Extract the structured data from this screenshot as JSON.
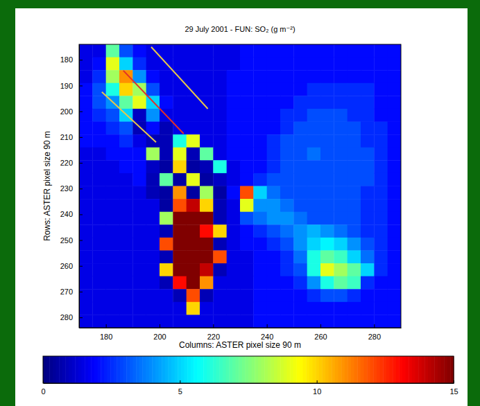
{
  "chart_data": {
    "type": "heatmap",
    "title": "29 July 2001 - FUN: SO₂ (g m⁻²)",
    "xlabel": "Columns: ASTER pixel size 90 m",
    "ylabel": "Rows: ASTER pixel size 90 m",
    "xlim": [
      170,
      290
    ],
    "ylim": [
      174,
      284
    ],
    "xticks": [
      180,
      200,
      220,
      240,
      260,
      280
    ],
    "yticks": [
      180,
      190,
      200,
      210,
      220,
      230,
      240,
      250,
      260,
      270,
      280
    ],
    "color": "jet",
    "cells": {
      "x_edges": [
        170,
        175,
        180,
        185,
        190,
        195,
        200,
        205,
        210,
        215,
        220,
        225,
        230,
        235,
        240,
        245,
        250,
        255,
        260,
        265,
        270,
        275,
        280,
        285,
        290
      ],
      "y_edges": [
        174,
        179,
        184,
        189,
        194,
        199,
        204,
        209,
        214,
        219,
        224,
        229,
        234,
        239,
        244,
        249,
        254,
        259,
        264,
        269,
        274,
        279,
        284
      ],
      "z": [
        [
          1.5,
          1.5,
          7,
          3,
          2,
          1.5,
          1.5,
          1.5,
          1.5,
          1.5,
          1.5,
          1.5,
          2,
          2,
          2,
          2,
          2,
          2,
          2,
          2,
          2,
          2,
          2,
          2
        ],
        [
          1.5,
          2,
          9,
          5,
          2.5,
          1.5,
          1.5,
          1.5,
          1.5,
          1.5,
          1.5,
          1.5,
          2,
          2,
          2,
          2,
          2,
          2,
          2,
          2,
          2,
          2,
          2,
          2
        ],
        [
          1.5,
          2.5,
          8,
          11,
          4,
          2,
          1.5,
          1.5,
          1.5,
          1.5,
          1.5,
          2,
          2,
          2,
          2,
          2,
          2,
          2,
          2,
          2,
          2,
          2,
          2,
          2
        ],
        [
          2,
          3,
          6,
          10,
          8,
          3,
          1.5,
          1.5,
          1.5,
          1.5,
          1.5,
          2,
          2,
          2,
          2,
          2,
          2,
          2.5,
          2.5,
          2.5,
          2.5,
          2.5,
          2,
          2
        ],
        [
          2,
          3,
          4,
          7,
          9,
          5,
          2,
          1.5,
          1.5,
          1.5,
          1.5,
          2,
          2,
          2,
          2,
          2,
          2.5,
          2.5,
          2.5,
          2.5,
          2.5,
          2.5,
          2,
          2
        ],
        [
          2,
          2.5,
          3,
          5,
          1,
          4,
          1.5,
          1.5,
          1.5,
          1.5,
          1.5,
          2,
          2,
          2,
          2,
          2.5,
          2.5,
          3,
          3,
          3,
          2.5,
          2.5,
          2,
          2
        ],
        [
          2,
          2,
          2.5,
          3,
          0.8,
          2,
          0.8,
          1.5,
          1.5,
          1.5,
          1.5,
          2,
          2,
          2,
          2,
          2.5,
          3,
          3,
          3,
          3,
          3,
          2.5,
          2.5,
          2
        ],
        [
          2,
          2,
          2,
          2.5,
          1.5,
          0.8,
          0.8,
          6,
          9,
          1.5,
          1.5,
          2,
          2,
          2,
          2.5,
          3,
          3,
          3,
          3,
          3,
          3,
          2.5,
          2.5,
          2
        ],
        [
          1.5,
          1.5,
          2,
          2,
          2,
          8,
          0.8,
          9,
          0.8,
          7,
          1.5,
          2,
          2,
          2,
          2.5,
          3,
          3,
          3.5,
          3,
          3,
          3,
          3,
          2.5,
          2
        ],
        [
          1.5,
          1.5,
          1.5,
          2,
          2,
          1,
          0.5,
          10,
          0.5,
          0.8,
          6,
          1.5,
          2,
          2,
          2.5,
          3,
          3,
          3,
          3,
          3,
          3,
          3,
          2.5,
          2
        ],
        [
          1.5,
          1.5,
          1.5,
          1.5,
          2,
          0.8,
          7,
          0.5,
          9,
          0.5,
          1,
          1.5,
          2,
          2.5,
          3,
          3,
          3,
          3,
          3,
          3,
          3,
          3,
          2.5,
          2
        ],
        [
          1.5,
          1.5,
          1.5,
          1.5,
          1.5,
          0.8,
          0.5,
          11,
          0.5,
          8,
          0.5,
          2,
          12,
          5,
          3.5,
          3,
          3,
          3,
          3,
          3,
          3,
          2.5,
          2.5,
          2
        ],
        [
          1.5,
          1.5,
          1.5,
          1.5,
          1.5,
          1.5,
          0.5,
          12,
          14,
          10,
          0.8,
          1.5,
          9,
          4,
          4,
          3.5,
          3,
          3,
          3,
          3,
          3,
          2.5,
          2.5,
          2
        ],
        [
          1.5,
          1.5,
          1.5,
          1.5,
          1.5,
          1.5,
          8,
          15,
          15,
          15,
          0.8,
          1.5,
          3,
          3.5,
          4,
          4,
          3.5,
          3,
          3,
          3,
          3,
          2.5,
          2.5,
          2
        ],
        [
          1.5,
          1.5,
          1.5,
          1.5,
          1.5,
          1.5,
          0.8,
          15,
          15,
          13,
          10,
          1.5,
          2,
          2.5,
          3,
          3.5,
          4,
          4.5,
          4,
          3.5,
          3,
          2.5,
          2.5,
          2
        ],
        [
          1.5,
          1.5,
          1.5,
          1.5,
          1.5,
          1.5,
          12,
          15,
          15,
          15,
          0.8,
          1.5,
          2,
          2,
          2.5,
          3,
          4,
          5,
          5.5,
          5,
          4,
          3,
          2.5,
          2
        ],
        [
          1.5,
          1.5,
          1.5,
          1.5,
          1.5,
          1.5,
          0.8,
          15,
          15,
          15,
          12,
          1.5,
          1.5,
          2,
          2,
          2.5,
          3.5,
          6,
          7,
          6.5,
          5,
          3.5,
          2.5,
          2
        ],
        [
          1.5,
          1.5,
          1.5,
          1.5,
          1.5,
          1.5,
          10,
          15,
          15,
          14,
          0.8,
          1.5,
          1.5,
          2,
          2,
          2.5,
          3,
          6,
          9,
          8,
          7,
          5,
          2.5,
          2
        ],
        [
          1.5,
          1.5,
          1.5,
          1.5,
          1.5,
          1.5,
          0.8,
          13,
          15,
          11,
          1.5,
          1.5,
          1.5,
          2,
          2,
          2,
          2.5,
          4,
          6,
          7,
          6.5,
          2.5,
          2,
          2
        ],
        [
          1.5,
          1.5,
          1.5,
          1.5,
          1.5,
          1.5,
          1.5,
          0.8,
          12,
          0.8,
          1.5,
          1.5,
          1.5,
          2,
          2,
          2,
          2,
          2.5,
          3,
          3,
          2.5,
          2,
          2,
          2
        ],
        [
          1.5,
          1.5,
          1.5,
          1.5,
          1.5,
          1.5,
          1.5,
          1.5,
          10,
          1.5,
          1.5,
          1.5,
          1.5,
          2,
          2,
          2,
          2,
          2,
          2,
          2,
          2,
          2,
          2,
          2
        ],
        [
          1.5,
          1.5,
          1.5,
          1.5,
          1.5,
          1.5,
          1.5,
          1.5,
          1.5,
          1.5,
          1.5,
          1.5,
          1.5,
          2,
          2,
          2,
          2,
          2,
          2,
          2,
          2,
          2,
          2,
          2
        ]
      ]
    },
    "colorbar": {
      "range": [
        0,
        15
      ],
      "ticks": [
        0,
        5,
        10,
        15
      ]
    },
    "lines": [
      {
        "color": "#e0302a",
        "x": [
          186.5,
          209
        ],
        "y": [
          184.2,
          208.7
        ]
      },
      {
        "color": "#e8c84a",
        "x": [
          196.9,
          218
        ],
        "y": [
          175,
          199
        ]
      },
      {
        "color": "#e8c84a",
        "x": [
          178.5,
          198.7
        ],
        "y": [
          192.5,
          212
        ]
      }
    ]
  }
}
